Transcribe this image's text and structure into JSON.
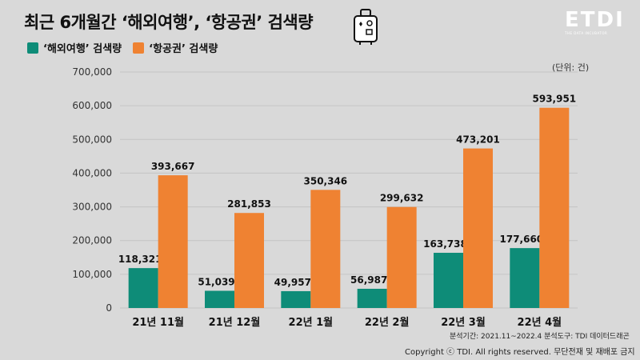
{
  "header": {
    "title": "최근 6개월간 ‘해외여행’, ‘항공권’ 검색량",
    "logo_text": "ETDI",
    "logo_sub": "THE DATA INCUBATOR"
  },
  "unit_label": "(단위: 건)",
  "footer": {
    "source": "분석기간: 2021.11~2022.4 분석도구: TDI 데이터드래곤",
    "copyright": "Copyright ⓒ TDI. All rights reserved. 무단전재 및 재배포 금지"
  },
  "colors": {
    "teal": "#0e8c78",
    "orange": "#ef8232"
  },
  "icons": {
    "suitcase": "suitcase-icon"
  },
  "chart_data": {
    "type": "bar",
    "categories": [
      "21년 11월",
      "21년 12월",
      "22년 1월",
      "22년 2월",
      "22년 3월",
      "22년 4월"
    ],
    "series": [
      {
        "name": "‘해외여행’ 검색량",
        "color": "#0e8c78",
        "values": [
          118321,
          51039,
          49957,
          56987,
          163738,
          177660
        ]
      },
      {
        "name": "‘항공권’ 검색량",
        "color": "#ef8232",
        "values": [
          393667,
          281853,
          350346,
          299632,
          473201,
          593951
        ]
      }
    ],
    "ylim": [
      0,
      700000
    ],
    "yticks": [
      0,
      100000,
      200000,
      300000,
      400000,
      500000,
      600000,
      700000
    ],
    "ytick_labels": [
      "0",
      "100,000",
      "200,000",
      "300,000",
      "400,000",
      "500,000",
      "600,000",
      "700,000"
    ],
    "grid": true,
    "legend": "top-left"
  }
}
